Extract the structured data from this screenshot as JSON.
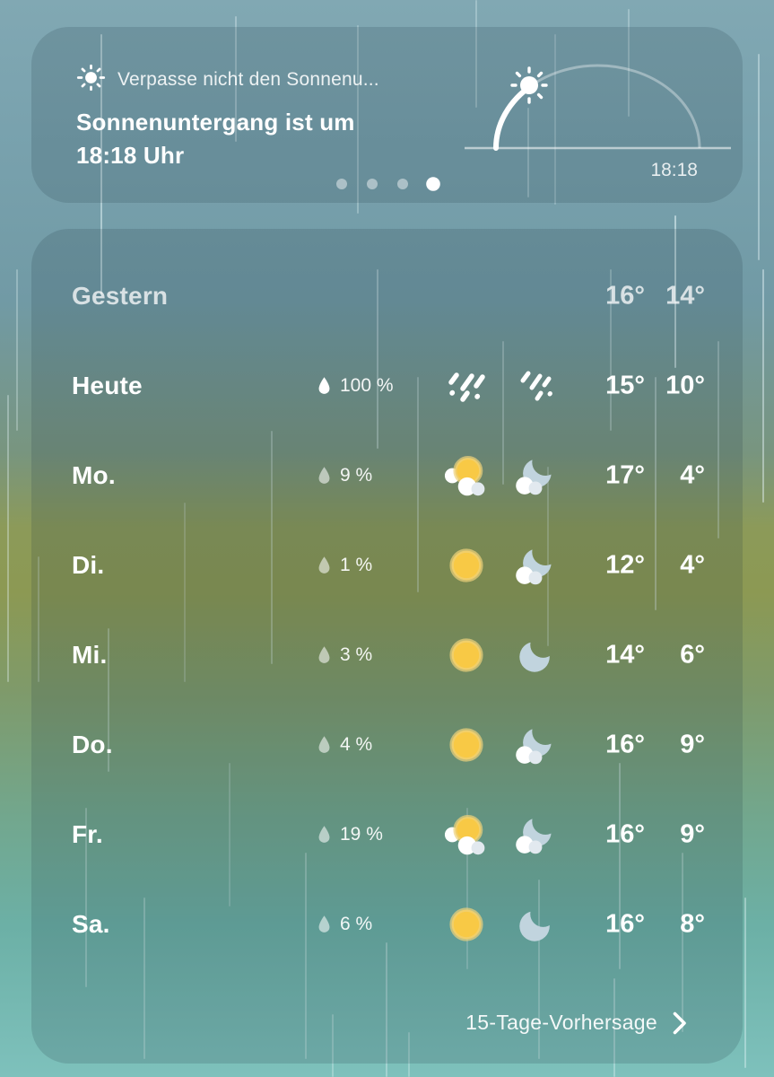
{
  "notification_card": {
    "icon": "sun-icon",
    "title": "Verpasse nicht den Sonnenu...",
    "message_line1": "Sonnenuntergang ist um",
    "message_line2": "18:18 Uhr",
    "sunset_time_label": "18:18",
    "pagination": {
      "count": 4,
      "active_index": 3
    }
  },
  "forecast_card": {
    "rows": [
      {
        "day": "Gestern",
        "precip": null,
        "day_icon": null,
        "night_icon": null,
        "high": "16°",
        "low": "14°",
        "muted": true
      },
      {
        "day": "Heute",
        "precip": "100 %",
        "precip_strong": true,
        "day_icon": "rain-heavy",
        "night_icon": "rain-light",
        "high": "15°",
        "low": "10°"
      },
      {
        "day": "Mo.",
        "precip": "9 %",
        "day_icon": "sun-cloud",
        "night_icon": "moon-cloud",
        "high": "17°",
        "low": "4°"
      },
      {
        "day": "Di.",
        "precip": "1 %",
        "day_icon": "sun",
        "night_icon": "moon-cloud",
        "high": "12°",
        "low": "4°"
      },
      {
        "day": "Mi.",
        "precip": "3 %",
        "day_icon": "sun",
        "night_icon": "moon",
        "high": "14°",
        "low": "6°"
      },
      {
        "day": "Do.",
        "precip": "4 %",
        "day_icon": "sun",
        "night_icon": "moon-cloud",
        "high": "16°",
        "low": "9°"
      },
      {
        "day": "Fr.",
        "precip": "19 %",
        "day_icon": "sun-cloud",
        "night_icon": "moon-cloud",
        "high": "16°",
        "low": "9°"
      },
      {
        "day": "Sa.",
        "precip": "6 %",
        "day_icon": "sun",
        "night_icon": "moon",
        "high": "16°",
        "low": "8°"
      }
    ],
    "footer": {
      "label": "15-Tage-Vorhersage"
    }
  },
  "colors": {
    "sun": "#f8c945",
    "sun_ring": "#eed27a",
    "moon": "#c1d4de",
    "cloud": "#ffffff",
    "cloud_shade": "#e2e9ef",
    "rain": "#ffffff",
    "text": "#ffffff"
  }
}
